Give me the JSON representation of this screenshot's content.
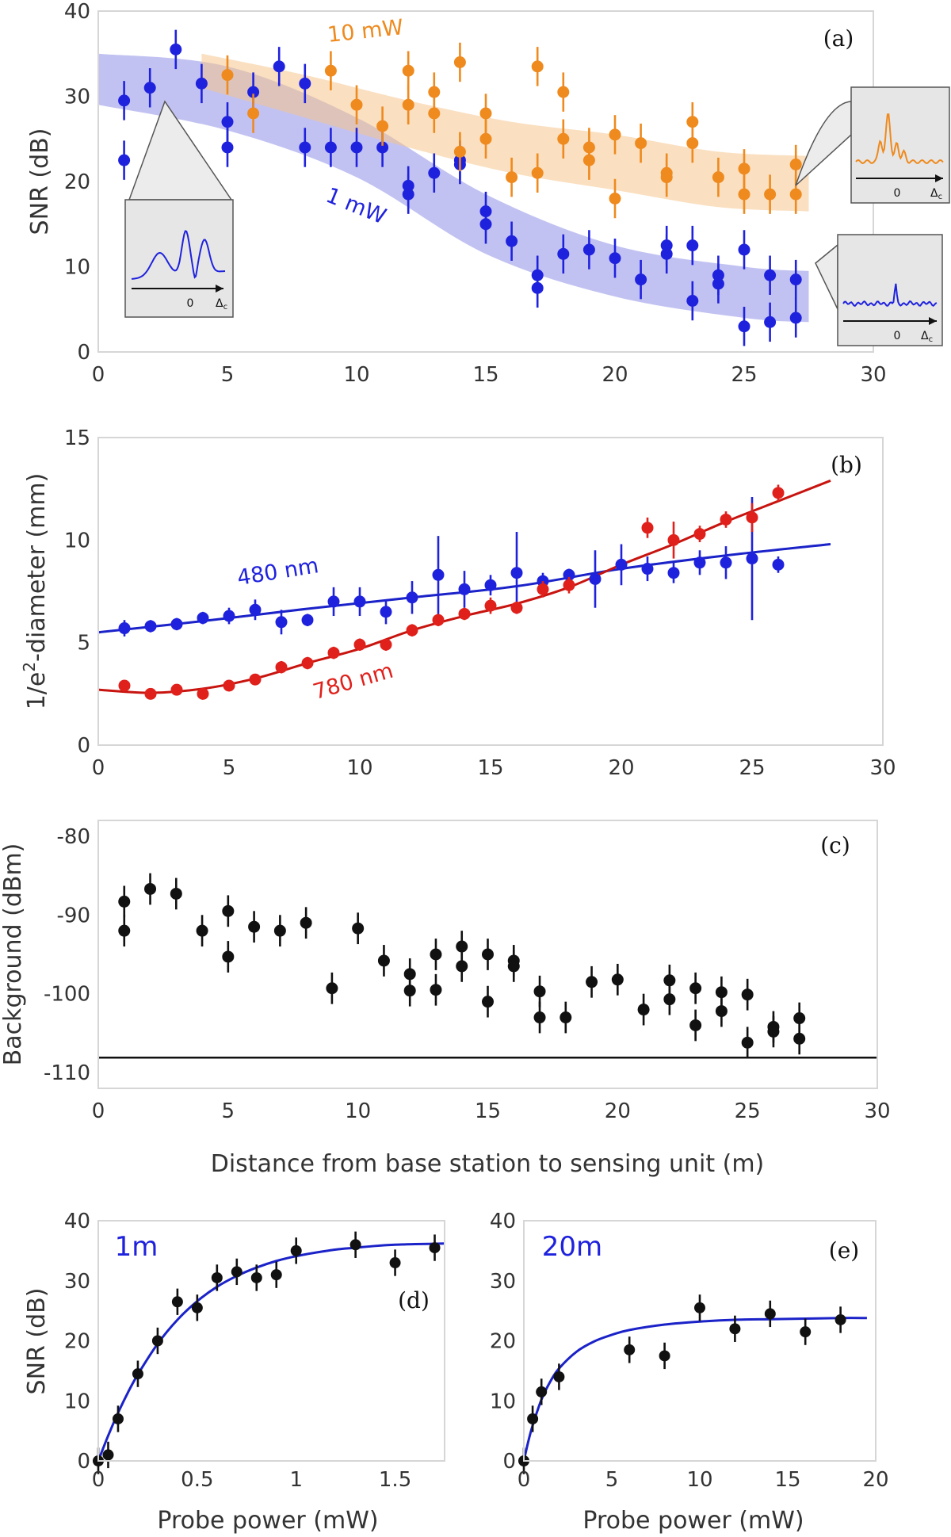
{
  "colors": {
    "blue": "#1f22dd",
    "orange": "#ee8a1e",
    "red": "#e0201b",
    "black": "#111111",
    "fit_blue": "#1a22c8",
    "fit_red": "#c8140f",
    "band_blue": "#8f8fe8",
    "band_orange": "#f6c48c"
  },
  "chart_data": [
    {
      "id": "a",
      "type": "scatter",
      "panel_label": "(a)",
      "ylabel": "SNR (dB)",
      "xlabel": "",
      "xlim": [
        0,
        30
      ],
      "ylim": [
        0,
        40
      ],
      "xticks": [
        "0",
        "5",
        "10",
        "15",
        "20",
        "25",
        "30"
      ],
      "yticks": [
        "0",
        "10",
        "20",
        "30",
        "40"
      ],
      "series": [
        {
          "name": "1 mW",
          "color": "blue",
          "label": "1 mW",
          "x": [
            1,
            1,
            2,
            3,
            4,
            5,
            5,
            6,
            7,
            8,
            8,
            9,
            10,
            11,
            12,
            12,
            13,
            14,
            14,
            15,
            15,
            16,
            17,
            17,
            18,
            19,
            20,
            21,
            22,
            22,
            23,
            23,
            24,
            24,
            25,
            25,
            26,
            26,
            27,
            27
          ],
          "y": [
            29.5,
            22.5,
            31,
            35.5,
            31.5,
            27,
            24,
            30.5,
            33.5,
            31.5,
            24,
            24,
            24,
            24,
            19.5,
            18.5,
            21,
            22.5,
            22,
            16.5,
            15,
            13,
            9,
            7.5,
            11.5,
            12,
            11,
            8.5,
            12.5,
            11.5,
            12.5,
            6,
            9,
            8,
            12,
            3,
            9,
            3.5,
            8.5,
            4
          ],
          "err": 2.3
        },
        {
          "name": "10 mW",
          "color": "orange",
          "label": "10 mW",
          "x": [
            5,
            6,
            9,
            10,
            11,
            12,
            12,
            13,
            13,
            14,
            14,
            15,
            15,
            16,
            17,
            17,
            18,
            18,
            19,
            19,
            20,
            20,
            21,
            22,
            22,
            23,
            23,
            24,
            25,
            25,
            26,
            27,
            27
          ],
          "y": [
            32.5,
            28,
            33,
            29,
            26.5,
            33,
            29,
            30.5,
            28,
            34,
            23.5,
            28,
            25,
            20.5,
            33.5,
            21,
            30.5,
            25,
            24,
            22.5,
            25.5,
            18,
            24.5,
            21,
            20.5,
            27,
            24.5,
            20.5,
            21.5,
            18.5,
            18.5,
            22,
            18.5
          ],
          "err": 2.3
        }
      ],
      "bands": [
        {
          "series": "1 mW",
          "color": "band_blue",
          "x": [
            0,
            5,
            10,
            15,
            20,
            25,
            27.5
          ],
          "lower": [
            29,
            26,
            20.5,
            11.5,
            6.5,
            4,
            3.5
          ],
          "upper": [
            35,
            33.5,
            27.5,
            18.5,
            12.5,
            10,
            9.5
          ]
        },
        {
          "series": "10 mW",
          "color": "band_orange",
          "x": [
            4,
            8,
            12,
            16,
            20,
            24,
            27.5
          ],
          "lower": [
            31,
            27.5,
            24,
            21,
            19,
            17,
            16.5
          ],
          "upper": [
            35,
            32.5,
            29.5,
            27,
            25.5,
            23.5,
            23
          ]
        }
      ],
      "insets": [
        {
          "series": "1 mW",
          "color": "blue",
          "ticks": [
            "0"
          ],
          "axis_label": "Δ",
          "axis_sub": "c",
          "shape": "broad"
        },
        {
          "series": "10 mW",
          "color": "orange",
          "ticks": [
            "0"
          ],
          "axis_label": "Δ",
          "axis_sub": "c",
          "shape": "medium"
        },
        {
          "series": "1 mW",
          "color": "blue",
          "ticks": [
            "0"
          ],
          "axis_label": "Δ",
          "axis_sub": "c",
          "shape": "narrow"
        }
      ]
    },
    {
      "id": "b",
      "type": "scatter",
      "panel_label": "(b)",
      "ylabel_main": "1/e",
      "ylabel_sup": "2",
      "ylabel_rest": "-diameter (mm)",
      "xlabel": "",
      "xlim": [
        0,
        30
      ],
      "ylim": [
        0,
        15
      ],
      "xticks": [
        "0",
        "5",
        "10",
        "15",
        "20",
        "25",
        "30"
      ],
      "yticks": [
        "0",
        "5",
        "10",
        "15"
      ],
      "series": [
        {
          "name": "480 nm",
          "color": "blue",
          "label": "480 nm",
          "x": [
            1,
            2,
            3,
            4,
            5,
            6,
            7,
            8,
            9,
            10,
            11,
            12,
            13,
            14,
            15,
            16,
            17,
            18,
            19,
            20,
            21,
            22,
            23,
            24,
            25,
            26
          ],
          "y": [
            5.7,
            5.8,
            5.9,
            6.2,
            6.3,
            6.6,
            6.0,
            6.1,
            7.0,
            7.0,
            6.5,
            7.2,
            8.3,
            7.6,
            7.8,
            8.4,
            8.0,
            8.3,
            8.1,
            8.8,
            8.6,
            8.4,
            8.9,
            8.9,
            9.1,
            8.8
          ],
          "err": [
            0.4,
            0.3,
            0.3,
            0.3,
            0.4,
            0.5,
            0.6,
            0.3,
            0.7,
            0.7,
            0.6,
            0.8,
            1.9,
            0.9,
            0.5,
            2.0,
            0.4,
            0.3,
            1.4,
            1.0,
            0.6,
            0.5,
            0.6,
            0.8,
            3.0,
            0.4
          ]
        },
        {
          "name": "780 nm",
          "color": "red",
          "label": "780 nm",
          "x": [
            1,
            2,
            3,
            4,
            5,
            6,
            7,
            8,
            9,
            10,
            11,
            12,
            13,
            14,
            15,
            16,
            17,
            18,
            21,
            22,
            23,
            24,
            25,
            26
          ],
          "y": [
            2.9,
            2.5,
            2.7,
            2.5,
            2.9,
            3.2,
            3.8,
            4.0,
            4.5,
            4.9,
            4.9,
            5.6,
            6.1,
            6.4,
            6.8,
            6.7,
            7.6,
            7.8,
            10.6,
            10.0,
            10.3,
            11.0,
            11.1,
            12.3
          ],
          "err": [
            0.2,
            0.2,
            0.2,
            0.2,
            0.2,
            0.2,
            0.3,
            0.3,
            0.3,
            0.3,
            0.3,
            0.3,
            0.3,
            0.3,
            0.4,
            0.3,
            0.4,
            0.4,
            0.5,
            0.9,
            0.4,
            0.4,
            0.7,
            0.4
          ]
        }
      ],
      "fits": [
        {
          "series": "480 nm",
          "color": "fit_blue",
          "x": [
            0,
            4,
            8,
            12,
            16,
            20,
            24,
            28
          ],
          "y": [
            5.5,
            6.05,
            6.65,
            7.2,
            7.75,
            8.6,
            9.25,
            9.8
          ]
        },
        {
          "series": "780 nm",
          "color": "fit_red",
          "x": [
            0,
            2,
            4,
            6,
            8,
            10,
            12,
            14,
            16,
            18,
            20,
            22,
            24,
            26,
            28
          ],
          "y": [
            2.7,
            2.55,
            2.75,
            3.25,
            4.0,
            4.7,
            5.6,
            6.3,
            6.9,
            7.7,
            8.8,
            9.8,
            10.9,
            11.9,
            12.9
          ]
        }
      ]
    },
    {
      "id": "c",
      "type": "scatter",
      "panel_label": "(c)",
      "ylabel": "Background (dBm)",
      "xlabel": "Distance from base station to sensing unit (m)",
      "xlim": [
        0,
        30
      ],
      "ylim": [
        -112,
        -78
      ],
      "xticks": [
        "0",
        "5",
        "10",
        "15",
        "20",
        "25",
        "30"
      ],
      "yticks": [
        "-80",
        "-90",
        "-100",
        "-110"
      ],
      "ytick_values": [
        -80,
        -90,
        -100,
        -110
      ],
      "hline": -108.1,
      "series": [
        {
          "name": "background",
          "color": "black",
          "x": [
            1,
            1,
            2,
            3,
            4,
            5,
            5,
            6,
            7,
            8,
            9,
            10,
            11,
            12,
            12,
            13,
            13,
            14,
            14,
            15,
            15,
            16,
            16,
            17,
            17,
            18,
            19,
            20,
            21,
            22,
            22,
            23,
            23,
            24,
            24,
            25,
            25,
            26,
            26,
            27,
            27
          ],
          "y": [
            -88.3,
            -92,
            -86.7,
            -87.3,
            -92,
            -89.5,
            -95.3,
            -91.5,
            -92,
            -91,
            -99.3,
            -91.7,
            -95.8,
            -97.5,
            -99.6,
            -95,
            -99.5,
            -94,
            -96.5,
            -95,
            -101,
            -95.8,
            -96.5,
            -99.7,
            -103,
            -103,
            -98.5,
            -98.2,
            -102,
            -98.3,
            -100.7,
            -99.3,
            -104,
            -99.8,
            -102.2,
            -100.1,
            -106.2,
            -104.2,
            -104.8,
            -103.1,
            -105.7
          ],
          "err": 2.0
        }
      ]
    },
    {
      "id": "d",
      "type": "scatter",
      "panel_label": "(d)",
      "title_label": "1m",
      "ylabel": "SNR (dB)",
      "xlabel": "Probe power (mW)",
      "xlim": [
        0,
        1.75
      ],
      "ylim": [
        0,
        40
      ],
      "xticks": [
        "0",
        "0.5",
        "1",
        "1.5"
      ],
      "xtick_values": [
        0,
        0.5,
        1,
        1.5
      ],
      "yticks": [
        "0",
        "10",
        "20",
        "30",
        "40"
      ],
      "series": [
        {
          "name": "1m",
          "color": "black",
          "x": [
            0,
            0.05,
            0.1,
            0.2,
            0.3,
            0.4,
            0.5,
            0.6,
            0.7,
            0.8,
            0.9,
            1.0,
            1.3,
            1.5,
            1.7
          ],
          "y": [
            0,
            1,
            7,
            14.5,
            20,
            26.5,
            25.5,
            30.5,
            31.5,
            30.5,
            31,
            35,
            36,
            33,
            35.5
          ],
          "err": 2.2
        }
      ],
      "fits": [
        {
          "series": "1m",
          "color": "fit_blue",
          "x": [
            0,
            0.05,
            0.1,
            0.15,
            0.2,
            0.3,
            0.4,
            0.5,
            0.6,
            0.7,
            0.8,
            0.9,
            1.0,
            1.1,
            1.2,
            1.3,
            1.4,
            1.5,
            1.6,
            1.75
          ],
          "y": [
            0,
            4.2,
            8.0,
            11.4,
            14.4,
            19.5,
            23.5,
            26.6,
            29.0,
            30.8,
            32.2,
            33.3,
            34.1,
            34.7,
            35.2,
            35.5,
            35.8,
            36.0,
            36.1,
            36.2
          ]
        }
      ]
    },
    {
      "id": "e",
      "type": "scatter",
      "panel_label": "(e)",
      "title_label": "20m",
      "ylabel": "",
      "xlabel": "Probe power (mW)",
      "xlim": [
        0,
        20
      ],
      "ylim": [
        0,
        40
      ],
      "xticks": [
        "0",
        "5",
        "10",
        "15",
        "20"
      ],
      "xtick_values": [
        0,
        5,
        10,
        15,
        20
      ],
      "yticks": [
        "0",
        "10",
        "20",
        "30",
        "40"
      ],
      "series": [
        {
          "name": "20m",
          "color": "black",
          "x": [
            0,
            0.5,
            1,
            2,
            6,
            8,
            10,
            12,
            14,
            16,
            18
          ],
          "y": [
            0,
            7,
            11.5,
            14,
            18.5,
            17.5,
            25.5,
            22,
            24.5,
            21.5,
            23.5
          ],
          "err": 2.2
        }
      ],
      "fits": [
        {
          "series": "20m",
          "color": "fit_blue",
          "x": [
            0,
            0.25,
            0.5,
            1,
            1.5,
            2,
            3,
            4,
            5,
            6,
            8,
            10,
            12,
            14,
            16,
            18,
            19.5
          ],
          "y": [
            0,
            3.2,
            5.9,
            10.2,
            13.2,
            15.4,
            18.2,
            19.9,
            21.0,
            21.8,
            22.7,
            23.2,
            23.5,
            23.6,
            23.7,
            23.8,
            23.8
          ]
        }
      ]
    }
  ]
}
